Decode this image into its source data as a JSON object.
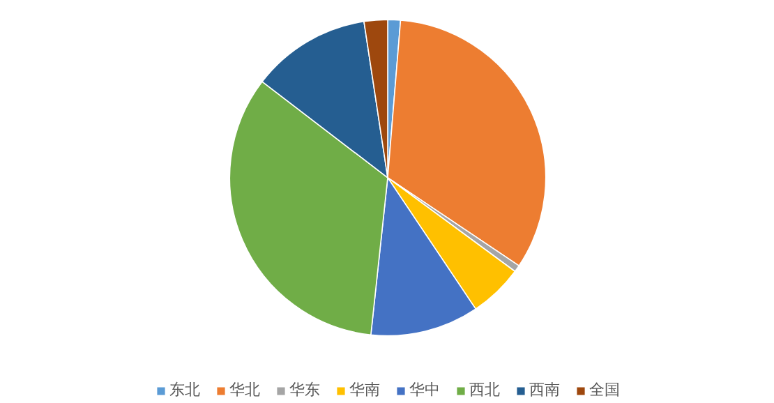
{
  "chart_data": {
    "type": "pie",
    "categories": [
      "东北",
      "华北",
      "华东",
      "华南",
      "华中",
      "西北",
      "西南",
      "全国"
    ],
    "values": [
      1.3,
      33.1,
      0.7,
      5.5,
      11.1,
      33.7,
      12.2,
      2.4
    ],
    "colors": [
      "#5b9bd5",
      "#ed7d31",
      "#a5a5a5",
      "#ffc000",
      "#4472c4",
      "#70ad47",
      "#255e91",
      "#9e480e"
    ],
    "legend": "bottom"
  }
}
